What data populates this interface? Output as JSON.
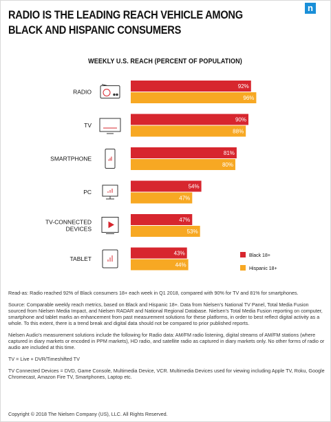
{
  "header": {
    "title": "RADIO IS THE LEADING REACH VEHICLE AMONG BLACK AND HISPANIC CONSUMERS",
    "logo_letter": "n"
  },
  "chart_data": {
    "type": "bar",
    "orientation": "horizontal",
    "title": "WEEKLY U.S. REACH (PERCENT OF POPULATION)",
    "categories": [
      "RADIO",
      "TV",
      "SMARTPHONE",
      "PC",
      "TV-CONNECTED DEVICES",
      "TABLET"
    ],
    "category_lines": [
      [
        "RADIO"
      ],
      [
        "TV"
      ],
      [
        "SMARTPHONE"
      ],
      [
        "PC"
      ],
      [
        "TV-CONNECTED",
        "DEVICES"
      ],
      [
        "TABLET"
      ]
    ],
    "icons": [
      "radio-icon",
      "tv-icon",
      "smartphone-icon",
      "pc-icon",
      "tv-connected-device-icon",
      "tablet-icon"
    ],
    "series": [
      {
        "name": "Black 18+",
        "color": "#d7262e",
        "values": [
          92,
          90,
          81,
          54,
          47,
          43
        ],
        "labels": [
          "92%",
          "90%",
          "81%",
          "54%",
          "47%",
          "43%"
        ]
      },
      {
        "name": "Hispanic 18+",
        "color": "#f7a823",
        "values": [
          96,
          88,
          80,
          47,
          53,
          44
        ],
        "labels": [
          "96%",
          "88%",
          "80%",
          "47%",
          "53%",
          "44%"
        ]
      }
    ],
    "xlim": [
      0,
      100
    ],
    "legend_position": "bottom-right",
    "grid": false
  },
  "notes": {
    "read_as": "Read-as: Radio reached 92% of Black consumers 18+ each week in Q1 2018, compared with 90% for TV and 81% for smartphones.",
    "source": "Source: Comparable weekly reach metrics, based on Black and Hispanic 18+. Data from Nielsen’s National TV Panel, Total Media Fusion sourced from Nielsen Media Impact, and Nielsen RADAR and National Regional Database. Nielsen’s Total Media Fusion reporting on computer, smartphone and tablet marks an enhancement from past measurement solutions for these platforms, in order to best reflect digital activity as a whole. To this extent, there is a trend break and digital data should not be compared to prior published reports.",
    "audio": "Nielsen Audio’s measurement solutions include the following for Radio data: AM/FM radio listening, digital streams of AM/FM stations (where captured in diary markets or encoded in PPM markets), HD radio, and satellite radio as captured in diary markets only. No other forms of radio or audio are included at this time.",
    "tv_def": "TV = Live + DVR/Timeshifted TV",
    "devices_def": "TV Connected Devices = DVD, Game Console, Multimedia Device, VCR. Multimedia Devices used for viewing including Apple TV, Roku, Google Chromecast, Amazon Fire TV, Smartphones, Laptop etc."
  },
  "footer": {
    "copyright": "Copyright © 2018 The Nielsen Company (US), LLC. All Rights Reserved."
  }
}
